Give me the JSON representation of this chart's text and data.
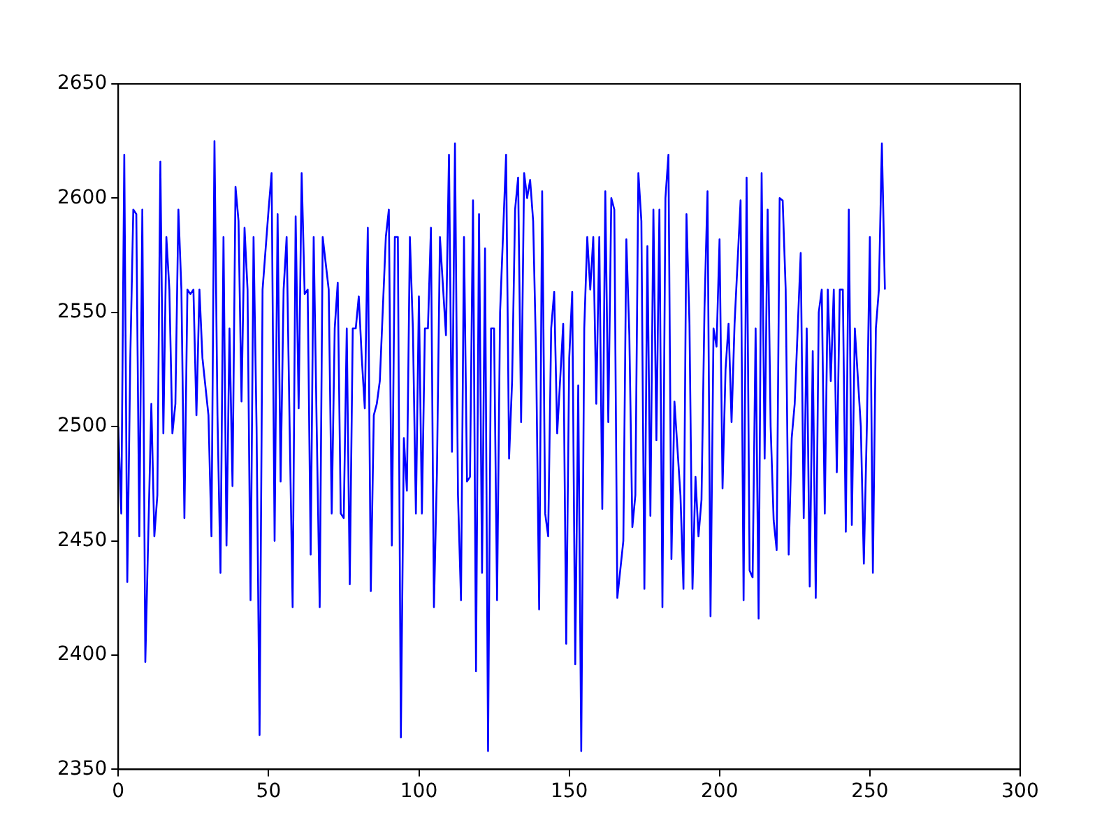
{
  "chart_data": {
    "type": "line",
    "xlim": [
      0,
      300
    ],
    "xticks": [
      0,
      50,
      100,
      150,
      200,
      250,
      300
    ],
    "ylim": [
      2350,
      2650
    ],
    "yticks": [
      2350,
      2400,
      2450,
      2500,
      2550,
      2600,
      2650
    ],
    "grid": false,
    "legend": false,
    "marker": "none",
    "line_style": "solid",
    "series": [
      {
        "color": "#0000ff",
        "x": [
          0,
          1,
          2,
          3,
          4,
          5,
          6,
          7,
          8,
          9,
          11,
          12,
          13,
          14,
          15,
          16,
          17,
          18,
          19,
          20,
          21,
          22,
          23,
          24,
          25,
          26,
          27,
          28,
          30,
          31,
          32,
          33,
          34,
          35,
          36,
          37,
          38,
          39,
          40,
          41,
          42,
          43,
          44,
          45,
          46,
          47,
          48,
          50,
          51,
          52,
          53,
          54,
          55,
          56,
          57,
          58,
          59,
          60,
          61,
          62,
          63,
          64,
          65,
          66,
          67,
          68,
          70,
          71,
          72,
          73,
          74,
          75,
          76,
          77,
          78,
          79,
          80,
          81,
          82,
          83,
          84,
          85,
          86,
          87,
          89,
          90,
          91,
          92,
          93,
          94,
          95,
          96,
          97,
          98,
          99,
          100,
          101,
          102,
          103,
          104,
          105,
          106,
          107,
          109,
          110,
          111,
          112,
          113,
          114,
          115,
          116,
          117,
          118,
          119,
          120,
          121,
          122,
          123,
          124,
          125,
          126,
          127,
          129,
          130,
          131,
          132,
          133,
          134,
          135,
          136,
          137,
          138,
          139,
          140,
          141,
          142,
          143,
          144,
          145,
          146,
          148,
          149,
          150,
          151,
          152,
          153,
          154,
          155,
          156,
          157,
          158,
          159,
          160,
          161,
          162,
          163,
          164,
          165,
          166,
          168,
          169,
          170,
          171,
          172,
          173,
          174,
          175,
          176,
          177,
          178,
          179,
          180,
          181,
          182,
          183,
          184,
          185,
          187,
          188,
          189,
          190,
          191,
          192,
          193,
          194,
          195,
          196,
          197,
          198,
          199,
          200,
          201,
          202,
          203,
          204,
          205,
          207,
          208,
          209,
          210,
          211,
          212,
          213,
          214,
          215,
          216,
          217,
          218,
          219,
          220,
          221,
          222,
          223,
          224,
          225,
          227,
          228,
          229,
          230,
          231,
          232,
          233,
          234,
          235,
          236,
          237,
          238,
          239,
          240,
          241,
          242,
          243,
          244,
          245,
          247,
          248,
          249,
          250,
          251,
          252,
          253,
          254,
          255
        ],
        "values": [
          2500,
          2462,
          2619,
          2432,
          2530,
          2595,
          2593,
          2452,
          2595,
          2397,
          2510,
          2452,
          2470,
          2616,
          2497,
          2583,
          2560,
          2497,
          2510,
          2595,
          2560,
          2460,
          2560,
          2558,
          2560,
          2505,
          2560,
          2530,
          2505,
          2452,
          2625,
          2505,
          2436,
          2583,
          2448,
          2543,
          2474,
          2605,
          2590,
          2511,
          2587,
          2560,
          2424,
          2583,
          2500,
          2365,
          2560,
          2595,
          2611,
          2450,
          2593,
          2476,
          2560,
          2583,
          2500,
          2421,
          2592,
          2508,
          2611,
          2558,
          2560,
          2444,
          2583,
          2500,
          2421,
          2583,
          2560,
          2462,
          2543,
          2563,
          2462,
          2460,
          2543,
          2431,
          2543,
          2543,
          2557,
          2530,
          2508,
          2587,
          2428,
          2505,
          2510,
          2520,
          2583,
          2595,
          2448,
          2583,
          2583,
          2364,
          2495,
          2472,
          2583,
          2543,
          2462,
          2557,
          2462,
          2543,
          2543,
          2587,
          2421,
          2480,
          2583,
          2540,
          2619,
          2489,
          2624,
          2470,
          2424,
          2583,
          2476,
          2478,
          2599,
          2393,
          2593,
          2436,
          2578,
          2358,
          2543,
          2543,
          2424,
          2550,
          2619,
          2486,
          2520,
          2595,
          2609,
          2502,
          2611,
          2600,
          2608,
          2590,
          2530,
          2420,
          2603,
          2462,
          2452,
          2543,
          2559,
          2497,
          2545,
          2405,
          2530,
          2559,
          2396,
          2518,
          2358,
          2543,
          2583,
          2560,
          2583,
          2510,
          2583,
          2464,
          2603,
          2502,
          2600,
          2595,
          2425,
          2450,
          2582,
          2540,
          2456,
          2470,
          2611,
          2590,
          2429,
          2579,
          2461,
          2595,
          2494,
          2595,
          2421,
          2600,
          2619,
          2442,
          2511,
          2470,
          2429,
          2593,
          2545,
          2429,
          2478,
          2452,
          2468,
          2552,
          2603,
          2417,
          2543,
          2535,
          2582,
          2473,
          2525,
          2545,
          2502,
          2545,
          2599,
          2424,
          2609,
          2437,
          2434,
          2543,
          2416,
          2611,
          2486,
          2595,
          2500,
          2459,
          2446,
          2600,
          2599,
          2560,
          2444,
          2495,
          2510,
          2576,
          2460,
          2543,
          2430,
          2533,
          2425,
          2550,
          2560,
          2462,
          2560,
          2520,
          2560,
          2480,
          2560,
          2560,
          2454,
          2595,
          2457,
          2543,
          2500,
          2440,
          2500,
          2583,
          2436,
          2543,
          2560,
          2624,
          2560
        ]
      }
    ]
  }
}
